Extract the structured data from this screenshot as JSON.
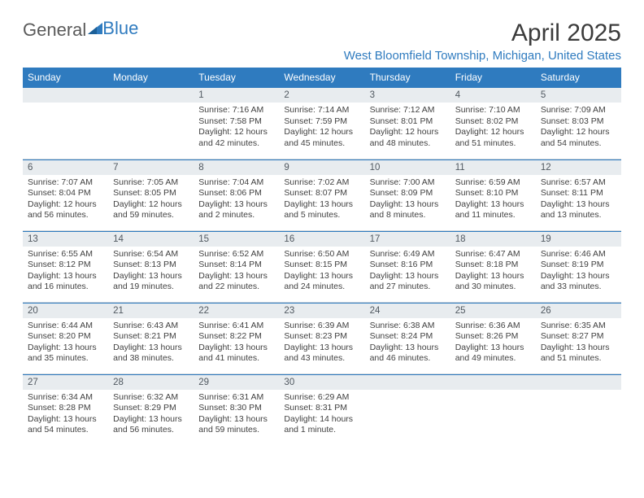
{
  "logo": {
    "part1": "General",
    "part2": "Blue"
  },
  "title": "April 2025",
  "location": "West Bloomfield Township, Michigan, United States",
  "colors": {
    "header_bg": "#2f7bbf",
    "header_text": "#ffffff",
    "daynum_bg": "#e8ecef",
    "daynum_text": "#505860",
    "body_text": "#414141",
    "location_text": "#2f7bbf",
    "border": "#cfd6dc"
  },
  "fonts": {
    "title_size_pt": 22,
    "location_size_pt": 11,
    "header_size_pt": 9,
    "body_size_pt": 8
  },
  "day_headers": [
    "Sunday",
    "Monday",
    "Tuesday",
    "Wednesday",
    "Thursday",
    "Friday",
    "Saturday"
  ],
  "weeks": [
    [
      {
        "day": "",
        "sunrise": "",
        "sunset": "",
        "daylight": ""
      },
      {
        "day": "",
        "sunrise": "",
        "sunset": "",
        "daylight": ""
      },
      {
        "day": "1",
        "sunrise": "Sunrise: 7:16 AM",
        "sunset": "Sunset: 7:58 PM",
        "daylight": "Daylight: 12 hours and 42 minutes."
      },
      {
        "day": "2",
        "sunrise": "Sunrise: 7:14 AM",
        "sunset": "Sunset: 7:59 PM",
        "daylight": "Daylight: 12 hours and 45 minutes."
      },
      {
        "day": "3",
        "sunrise": "Sunrise: 7:12 AM",
        "sunset": "Sunset: 8:01 PM",
        "daylight": "Daylight: 12 hours and 48 minutes."
      },
      {
        "day": "4",
        "sunrise": "Sunrise: 7:10 AM",
        "sunset": "Sunset: 8:02 PM",
        "daylight": "Daylight: 12 hours and 51 minutes."
      },
      {
        "day": "5",
        "sunrise": "Sunrise: 7:09 AM",
        "sunset": "Sunset: 8:03 PM",
        "daylight": "Daylight: 12 hours and 54 minutes."
      }
    ],
    [
      {
        "day": "6",
        "sunrise": "Sunrise: 7:07 AM",
        "sunset": "Sunset: 8:04 PM",
        "daylight": "Daylight: 12 hours and 56 minutes."
      },
      {
        "day": "7",
        "sunrise": "Sunrise: 7:05 AM",
        "sunset": "Sunset: 8:05 PM",
        "daylight": "Daylight: 12 hours and 59 minutes."
      },
      {
        "day": "8",
        "sunrise": "Sunrise: 7:04 AM",
        "sunset": "Sunset: 8:06 PM",
        "daylight": "Daylight: 13 hours and 2 minutes."
      },
      {
        "day": "9",
        "sunrise": "Sunrise: 7:02 AM",
        "sunset": "Sunset: 8:07 PM",
        "daylight": "Daylight: 13 hours and 5 minutes."
      },
      {
        "day": "10",
        "sunrise": "Sunrise: 7:00 AM",
        "sunset": "Sunset: 8:09 PM",
        "daylight": "Daylight: 13 hours and 8 minutes."
      },
      {
        "day": "11",
        "sunrise": "Sunrise: 6:59 AM",
        "sunset": "Sunset: 8:10 PM",
        "daylight": "Daylight: 13 hours and 11 minutes."
      },
      {
        "day": "12",
        "sunrise": "Sunrise: 6:57 AM",
        "sunset": "Sunset: 8:11 PM",
        "daylight": "Daylight: 13 hours and 13 minutes."
      }
    ],
    [
      {
        "day": "13",
        "sunrise": "Sunrise: 6:55 AM",
        "sunset": "Sunset: 8:12 PM",
        "daylight": "Daylight: 13 hours and 16 minutes."
      },
      {
        "day": "14",
        "sunrise": "Sunrise: 6:54 AM",
        "sunset": "Sunset: 8:13 PM",
        "daylight": "Daylight: 13 hours and 19 minutes."
      },
      {
        "day": "15",
        "sunrise": "Sunrise: 6:52 AM",
        "sunset": "Sunset: 8:14 PM",
        "daylight": "Daylight: 13 hours and 22 minutes."
      },
      {
        "day": "16",
        "sunrise": "Sunrise: 6:50 AM",
        "sunset": "Sunset: 8:15 PM",
        "daylight": "Daylight: 13 hours and 24 minutes."
      },
      {
        "day": "17",
        "sunrise": "Sunrise: 6:49 AM",
        "sunset": "Sunset: 8:16 PM",
        "daylight": "Daylight: 13 hours and 27 minutes."
      },
      {
        "day": "18",
        "sunrise": "Sunrise: 6:47 AM",
        "sunset": "Sunset: 8:18 PM",
        "daylight": "Daylight: 13 hours and 30 minutes."
      },
      {
        "day": "19",
        "sunrise": "Sunrise: 6:46 AM",
        "sunset": "Sunset: 8:19 PM",
        "daylight": "Daylight: 13 hours and 33 minutes."
      }
    ],
    [
      {
        "day": "20",
        "sunrise": "Sunrise: 6:44 AM",
        "sunset": "Sunset: 8:20 PM",
        "daylight": "Daylight: 13 hours and 35 minutes."
      },
      {
        "day": "21",
        "sunrise": "Sunrise: 6:43 AM",
        "sunset": "Sunset: 8:21 PM",
        "daylight": "Daylight: 13 hours and 38 minutes."
      },
      {
        "day": "22",
        "sunrise": "Sunrise: 6:41 AM",
        "sunset": "Sunset: 8:22 PM",
        "daylight": "Daylight: 13 hours and 41 minutes."
      },
      {
        "day": "23",
        "sunrise": "Sunrise: 6:39 AM",
        "sunset": "Sunset: 8:23 PM",
        "daylight": "Daylight: 13 hours and 43 minutes."
      },
      {
        "day": "24",
        "sunrise": "Sunrise: 6:38 AM",
        "sunset": "Sunset: 8:24 PM",
        "daylight": "Daylight: 13 hours and 46 minutes."
      },
      {
        "day": "25",
        "sunrise": "Sunrise: 6:36 AM",
        "sunset": "Sunset: 8:26 PM",
        "daylight": "Daylight: 13 hours and 49 minutes."
      },
      {
        "day": "26",
        "sunrise": "Sunrise: 6:35 AM",
        "sunset": "Sunset: 8:27 PM",
        "daylight": "Daylight: 13 hours and 51 minutes."
      }
    ],
    [
      {
        "day": "27",
        "sunrise": "Sunrise: 6:34 AM",
        "sunset": "Sunset: 8:28 PM",
        "daylight": "Daylight: 13 hours and 54 minutes."
      },
      {
        "day": "28",
        "sunrise": "Sunrise: 6:32 AM",
        "sunset": "Sunset: 8:29 PM",
        "daylight": "Daylight: 13 hours and 56 minutes."
      },
      {
        "day": "29",
        "sunrise": "Sunrise: 6:31 AM",
        "sunset": "Sunset: 8:30 PM",
        "daylight": "Daylight: 13 hours and 59 minutes."
      },
      {
        "day": "30",
        "sunrise": "Sunrise: 6:29 AM",
        "sunset": "Sunset: 8:31 PM",
        "daylight": "Daylight: 14 hours and 1 minute."
      },
      {
        "day": "",
        "sunrise": "",
        "sunset": "",
        "daylight": ""
      },
      {
        "day": "",
        "sunrise": "",
        "sunset": "",
        "daylight": ""
      },
      {
        "day": "",
        "sunrise": "",
        "sunset": "",
        "daylight": ""
      }
    ]
  ]
}
